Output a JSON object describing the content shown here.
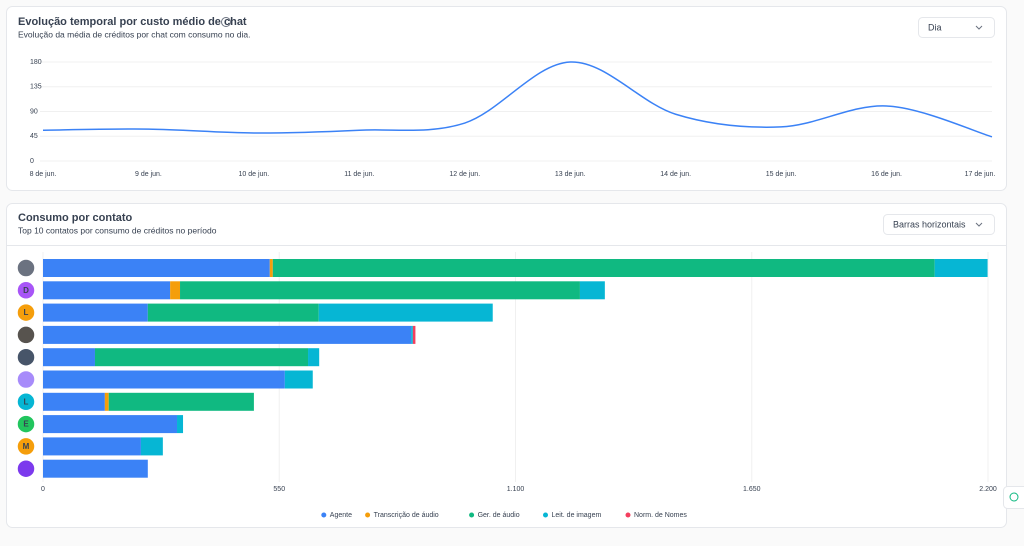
{
  "chart_data": [
    {
      "type": "line",
      "title": "Evolução temporal por custo médio de chat",
      "subtitle": "Evolução da média de créditos por chat com consumo no dia.",
      "control": "Dia",
      "categories": [
        "8 de jun.",
        "9 de jun.",
        "10 de jun.",
        "11 de jun.",
        "12 de jun.",
        "13 de jun.",
        "14 de jun.",
        "15 de jun.",
        "16 de jun.",
        "17 de jun."
      ],
      "values": [
        56,
        58,
        51,
        56,
        69,
        180,
        85,
        62,
        100,
        44
      ],
      "color": "#3b82f6",
      "ylim": [
        0,
        180
      ],
      "yticks": [
        0,
        45,
        90,
        135,
        180
      ],
      "grid": true
    },
    {
      "type": "stacked-hbar",
      "title": "Consumo por contato",
      "subtitle": "Top 10 contatos por consumo de créditos no período",
      "control": "Barras horizontais",
      "categories": [
        null,
        "D",
        "L",
        null,
        null,
        null,
        "L",
        "E",
        "M",
        null
      ],
      "category_colors": [
        "#6b7280",
        "#a855f7",
        "#f59e0b",
        "#57534e",
        "#475569",
        "#a78bfa",
        "#06b6d4",
        "#22c55e",
        "#f59e0b",
        "#7c3aed"
      ],
      "series": [
        {
          "name": "Agente",
          "color": "#3b82f6",
          "values": [
            528,
            296,
            244,
            857,
            121,
            563,
            144,
            312,
            228,
            244
          ]
        },
        {
          "name": "Transcrição de áudio",
          "color": "#f59e0b",
          "values": [
            7,
            23,
            0,
            0,
            0,
            0,
            9,
            0,
            0,
            0
          ]
        },
        {
          "name": "Ger. de áudio",
          "color": "#10b981",
          "values": [
            1541,
            931,
            398,
            0,
            496,
            0,
            338,
            0,
            0,
            0
          ]
        },
        {
          "name": "Leit. de imagem",
          "color": "#06b6d4",
          "values": [
            123,
            58,
            405,
            4,
            26,
            65,
            0,
            14,
            51,
            0
          ]
        },
        {
          "name": "Norm. de Nomes",
          "color": "#f43f5e",
          "values": [
            0,
            0,
            0,
            6,
            0,
            0,
            0,
            0,
            0,
            0
          ]
        }
      ],
      "xlim": [
        0,
        2200
      ],
      "xticks": [
        0,
        550,
        {
          "value": 1100,
          "label": "1.100"
        },
        {
          "value": 1650,
          "label": "1.650"
        },
        {
          "value": 2200,
          "label": "2.200"
        }
      ],
      "grid": true
    }
  ]
}
